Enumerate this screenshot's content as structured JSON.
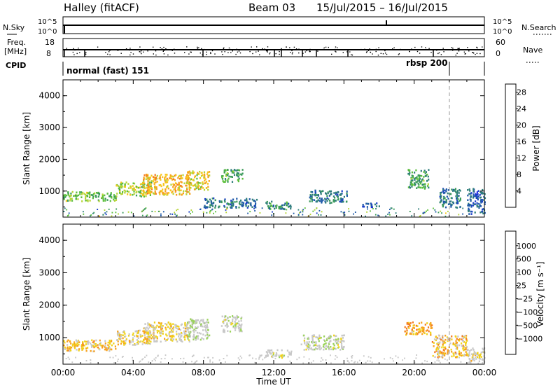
{
  "header": {
    "station": "Halley (fitACF)",
    "beam": "Beam 03",
    "date_range": "15/Jul/2015 – 16/Jul/2015"
  },
  "strips": {
    "nsky_label": "N.Sky",
    "nsky_ticks": [
      "10^5",
      "10^0"
    ],
    "nsearch_label": "N.Search",
    "nsearch_ticks": [
      "10^5",
      "10^0"
    ],
    "freq_label_1": "Freq.",
    "freq_label_2": "[MHz]",
    "freq_ticks": [
      "18",
      "8"
    ],
    "nave_label": "Nave",
    "nave_ticks": [
      "60",
      "0"
    ],
    "cpid_label": "CPID",
    "cpid_segments": [
      "normal (fast) 151",
      "rbsp 200"
    ]
  },
  "x_axis": {
    "ticks": [
      "00:00",
      "04:00",
      "08:00",
      "12:00",
      "16:00",
      "20:00",
      "00:00"
    ],
    "label": "Time UT"
  },
  "panels": {
    "power": {
      "ylabel": "Slant Range [km]",
      "yticks": [
        "4000",
        "3000",
        "2000",
        "1000"
      ],
      "colorbar_label": "Power [dB]",
      "colorbar_ticks": [
        "28",
        "24",
        "20",
        "16",
        "12",
        "8",
        "4"
      ],
      "colorbar_colors": [
        "#e8251e",
        "#f04a1c",
        "#f47b20",
        "#f6a11e",
        "#f7c61a",
        "#b6d434",
        "#5cbf3c",
        "#3a9a5a",
        "#2f7e7a",
        "#1f5aa8",
        "#1c3fc8",
        "#2222e6"
      ]
    },
    "velocity": {
      "ylabel": "Slant Range [km]",
      "yticks": [
        "4000",
        "3000",
        "2000",
        "1000"
      ],
      "colorbar_label": "Velocity [m s⁻¹]",
      "colorbar_ticks": [
        "1000",
        "500",
        "100",
        "25",
        "−25",
        "−100",
        "−500",
        "−1000"
      ],
      "colorbar_colors": [
        "#1f3fb8",
        "#2f6fb0",
        "#3a9a6a",
        "#5cbf3c",
        "#9ad25a",
        "#c8c8c8",
        "#c8c8c8",
        "#f0d21a",
        "#f6a11e",
        "#f47b20",
        "#ee4f1c",
        "#e8251e"
      ]
    }
  },
  "chart_data": [
    {
      "type": "heatmap",
      "title": "Halley (fitACF) Beam 03 15/Jul/2015 – 16/Jul/2015",
      "ylabel": "Slant Range [km]",
      "xlabel": "Time UT",
      "ylim": [
        180,
        4500
      ],
      "xlim_hours": [
        0,
        24
      ],
      "zlabel": "Power [dB]",
      "zlim": [
        0,
        30
      ],
      "scatter_regions": [
        {
          "t": [
            0.0,
            3.0
          ],
          "range": [
            700,
            1000
          ],
          "value": 14
        },
        {
          "t": [
            3.0,
            5.0
          ],
          "range": [
            850,
            1300
          ],
          "value": 16
        },
        {
          "t": [
            4.5,
            7.2
          ],
          "range": [
            900,
            1550
          ],
          "value": 20
        },
        {
          "t": [
            7.0,
            8.3
          ],
          "range": [
            1050,
            1650
          ],
          "value": 18
        },
        {
          "t": [
            9.0,
            10.2
          ],
          "range": [
            1300,
            1700
          ],
          "value": 12
        },
        {
          "t": [
            8.0,
            11.0
          ],
          "range": [
            500,
            800
          ],
          "value": 8
        },
        {
          "t": [
            11.5,
            13.0
          ],
          "range": [
            450,
            700
          ],
          "value": 10
        },
        {
          "t": [
            14.0,
            16.2
          ],
          "range": [
            650,
            1050
          ],
          "value": 8
        },
        {
          "t": [
            17.0,
            18.0
          ],
          "range": [
            500,
            650
          ],
          "value": 6
        },
        {
          "t": [
            19.6,
            20.8
          ],
          "range": [
            1100,
            1700
          ],
          "value": 12
        },
        {
          "t": [
            21.4,
            22.6
          ],
          "range": [
            500,
            1100
          ],
          "value": 8
        },
        {
          "t": [
            23.0,
            24.0
          ],
          "range": [
            300,
            1100
          ],
          "value": 6
        }
      ]
    },
    {
      "type": "heatmap",
      "ylabel": "Slant Range [km]",
      "xlabel": "Time UT",
      "ylim": [
        180,
        4500
      ],
      "xlim_hours": [
        0,
        24
      ],
      "zlabel": "Velocity [m s⁻¹]",
      "zlim": [
        -1000,
        1000
      ],
      "scatter_regions": [
        {
          "t": [
            0.0,
            3.0
          ],
          "range": [
            600,
            950
          ],
          "value": -300
        },
        {
          "t": [
            3.0,
            5.0
          ],
          "range": [
            800,
            1250
          ],
          "value": -200
        },
        {
          "t": [
            4.5,
            7.2
          ],
          "range": [
            900,
            1500
          ],
          "value": -150
        },
        {
          "t": [
            7.0,
            8.3
          ],
          "range": [
            950,
            1600
          ],
          "value": 80
        },
        {
          "t": [
            9.0,
            10.2
          ],
          "range": [
            1200,
            1700
          ],
          "value": 50
        },
        {
          "t": [
            11.5,
            13.0
          ],
          "range": [
            400,
            650
          ],
          "value": 0
        },
        {
          "t": [
            13.5,
            16.0
          ],
          "range": [
            650,
            1100
          ],
          "value": 40
        },
        {
          "t": [
            19.4,
            21.0
          ],
          "range": [
            1100,
            1500
          ],
          "value": -400
        },
        {
          "t": [
            21.0,
            23.0
          ],
          "range": [
            400,
            1100
          ],
          "value": -300
        },
        {
          "t": [
            23.0,
            24.0
          ],
          "range": [
            250,
            700
          ],
          "value": -100
        }
      ]
    }
  ]
}
